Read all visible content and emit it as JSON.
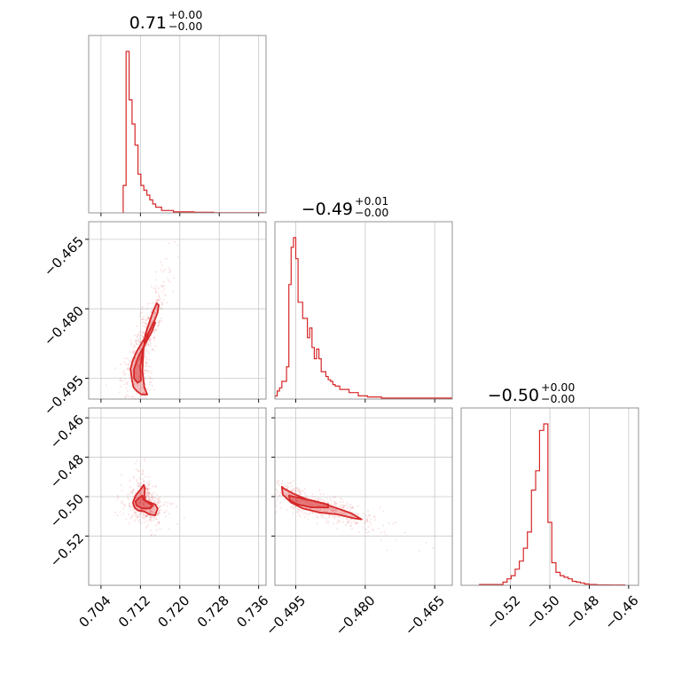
{
  "chart_data": {
    "type": "corner",
    "color": "#d62728",
    "grid": true,
    "columns": [
      {
        "title_value": "0.71",
        "title_plus": "+0.00",
        "title_minus": "−0.00",
        "range": [
          0.7015,
          0.7375
        ],
        "ticks": [
          0.704,
          0.712,
          0.72,
          0.728,
          0.736
        ],
        "tick_labels": [
          "0.704",
          "0.712",
          "0.720",
          "0.728",
          "0.736"
        ],
        "hist_edges": [
          0.7085,
          0.7091,
          0.7097,
          0.7103,
          0.7109,
          0.7115,
          0.7121,
          0.7127,
          0.7133,
          0.7139,
          0.7145,
          0.7151,
          0.7163,
          0.7187,
          0.7229,
          0.7269,
          0.7371
        ],
        "hist_values": [
          0.17,
          1.0,
          0.7,
          0.55,
          0.42,
          0.24,
          0.17,
          0.14,
          0.11,
          0.08,
          0.055,
          0.035,
          0.015,
          0.006,
          0.004,
          0.001
        ]
      },
      {
        "title_value": "−0.49",
        "title_plus": "+0.01",
        "title_minus": "−0.00",
        "range": [
          -0.4995,
          -0.4612
        ],
        "ticks": [
          -0.495,
          -0.48,
          -0.465
        ],
        "tick_labels": [
          "−0.495",
          "−0.480",
          "−0.465"
        ],
        "hist_edges": [
          -0.4995,
          -0.499,
          -0.4985,
          -0.498,
          -0.4975,
          -0.497,
          -0.4965,
          -0.496,
          -0.4955,
          -0.495,
          -0.4945,
          -0.494,
          -0.4935,
          -0.493,
          -0.4925,
          -0.492,
          -0.4915,
          -0.491,
          -0.4905,
          -0.49,
          -0.4895,
          -0.489,
          -0.4885,
          -0.488,
          -0.4875,
          -0.487,
          -0.4865,
          -0.4855,
          -0.4835,
          -0.4815,
          -0.4795,
          -0.4765,
          -0.4725,
          -0.4612
        ],
        "hist_values": [
          0.02,
          0.05,
          0.07,
          0.11,
          0.11,
          0.2,
          0.71,
          0.94,
          1.0,
          0.87,
          0.6,
          0.6,
          0.5,
          0.5,
          0.38,
          0.44,
          0.32,
          0.25,
          0.31,
          0.25,
          0.17,
          0.17,
          0.14,
          0.12,
          0.11,
          0.09,
          0.08,
          0.06,
          0.04,
          0.02,
          0.013,
          0.006,
          0.006
        ]
      },
      {
        "title_value": "−0.50",
        "title_plus": "+0.00",
        "title_minus": "−0.00",
        "range": [
          -0.545,
          -0.455
        ],
        "ticks": [
          -0.52,
          -0.5,
          -0.48,
          -0.46
        ],
        "tick_labels": [
          "−0.52",
          "−0.50",
          "−0.48",
          "−0.46"
        ],
        "hist_edges": [
          -0.5357,
          -0.5238,
          -0.5217,
          -0.5196,
          -0.5176,
          -0.5155,
          -0.5134,
          -0.5114,
          -0.5093,
          -0.5072,
          -0.5052,
          -0.5031,
          -0.501,
          -0.499,
          -0.4969,
          -0.4948,
          -0.4928,
          -0.4907,
          -0.4886,
          -0.4866,
          -0.4845,
          -0.4824,
          -0.4801,
          -0.4762,
          -0.47,
          -0.462
        ],
        "hist_values": [
          0.005,
          0.02,
          0.04,
          0.06,
          0.1,
          0.15,
          0.23,
          0.33,
          0.59,
          0.71,
          0.96,
          1.0,
          0.39,
          0.14,
          0.08,
          0.06,
          0.05,
          0.04,
          0.025,
          0.02,
          0.015,
          0.008,
          0.005,
          0.003,
          0.002
        ]
      }
    ],
    "row_axes": [
      {
        "ticks": [
          -0.465,
          -0.48,
          -0.495
        ],
        "tick_labels": [
          "−0.465",
          "−0.480",
          "−0.495"
        ]
      },
      {
        "ticks": [
          -0.46,
          -0.48,
          -0.5,
          -0.52
        ],
        "tick_labels": [
          "−0.46",
          "−0.48",
          "−0.50",
          "−0.52"
        ]
      }
    ],
    "panels_2d": [
      {
        "row": 1,
        "col": 0,
        "contour_outer": [
          [
            0.7103,
            -0.4955
          ],
          [
            0.71,
            -0.493
          ],
          [
            0.7104,
            -0.4913
          ],
          [
            0.7112,
            -0.4893
          ],
          [
            0.7125,
            -0.487
          ],
          [
            0.7137,
            -0.485
          ],
          [
            0.7148,
            -0.4827
          ],
          [
            0.7155,
            -0.4808
          ],
          [
            0.7157,
            -0.4792
          ],
          [
            0.7153,
            -0.4788
          ],
          [
            0.7146,
            -0.4805
          ],
          [
            0.7138,
            -0.483
          ],
          [
            0.713,
            -0.4855
          ],
          [
            0.7126,
            -0.489
          ],
          [
            0.7124,
            -0.4935
          ],
          [
            0.7128,
            -0.497
          ],
          [
            0.7134,
            -0.4985
          ],
          [
            0.7122,
            -0.4985
          ],
          [
            0.7113,
            -0.4978
          ],
          [
            0.7106,
            -0.497
          ]
        ],
        "contour_inner": [
          [
            0.7107,
            -0.495
          ],
          [
            0.7107,
            -0.493
          ],
          [
            0.7115,
            -0.4905
          ],
          [
            0.713,
            -0.4875
          ],
          [
            0.7143,
            -0.485
          ],
          [
            0.715,
            -0.483
          ],
          [
            0.7146,
            -0.483
          ],
          [
            0.7134,
            -0.486
          ],
          [
            0.7125,
            -0.489
          ],
          [
            0.712,
            -0.4925
          ],
          [
            0.7121,
            -0.4955
          ],
          [
            0.7114,
            -0.496
          ]
        ]
      },
      {
        "row": 2,
        "col": 0,
        "contour_outer": [
          [
            0.7108,
            -0.5055
          ],
          [
            0.7105,
            -0.503
          ],
          [
            0.711,
            -0.4995
          ],
          [
            0.712,
            -0.4965
          ],
          [
            0.7127,
            -0.494
          ],
          [
            0.7129,
            -0.496
          ],
          [
            0.7128,
            -0.4995
          ],
          [
            0.713,
            -0.502
          ],
          [
            0.714,
            -0.503
          ],
          [
            0.715,
            -0.504
          ],
          [
            0.7155,
            -0.506
          ],
          [
            0.715,
            -0.5095
          ],
          [
            0.7138,
            -0.509
          ],
          [
            0.7128,
            -0.5075
          ],
          [
            0.7115,
            -0.507
          ]
        ],
        "contour_inner": [
          [
            0.7112,
            -0.5045
          ],
          [
            0.711,
            -0.5025
          ],
          [
            0.7117,
            -0.5005
          ],
          [
            0.7124,
            -0.4995
          ],
          [
            0.7126,
            -0.5015
          ],
          [
            0.7136,
            -0.503
          ],
          [
            0.7145,
            -0.5045
          ],
          [
            0.714,
            -0.506
          ],
          [
            0.7125,
            -0.506
          ]
        ]
      },
      {
        "row": 2,
        "col": 1,
        "contour_outer": [
          [
            -0.498,
            -0.495
          ],
          [
            -0.4975,
            -0.496
          ],
          [
            -0.4955,
            -0.4985
          ],
          [
            -0.4925,
            -0.5015
          ],
          [
            -0.489,
            -0.5035
          ],
          [
            -0.486,
            -0.506
          ],
          [
            -0.483,
            -0.5085
          ],
          [
            -0.4808,
            -0.5115
          ],
          [
            -0.4825,
            -0.511
          ],
          [
            -0.486,
            -0.509
          ],
          [
            -0.49,
            -0.508
          ],
          [
            -0.4935,
            -0.506
          ],
          [
            -0.496,
            -0.503
          ],
          [
            -0.4978,
            -0.499
          ]
        ],
        "contour_inner": [
          [
            -0.4965,
            -0.4995
          ],
          [
            -0.4945,
            -0.5005
          ],
          [
            -0.4915,
            -0.502
          ],
          [
            -0.488,
            -0.504
          ],
          [
            -0.488,
            -0.5055
          ],
          [
            -0.4915,
            -0.5055
          ],
          [
            -0.4945,
            -0.504
          ],
          [
            -0.4962,
            -0.502
          ]
        ]
      }
    ]
  }
}
